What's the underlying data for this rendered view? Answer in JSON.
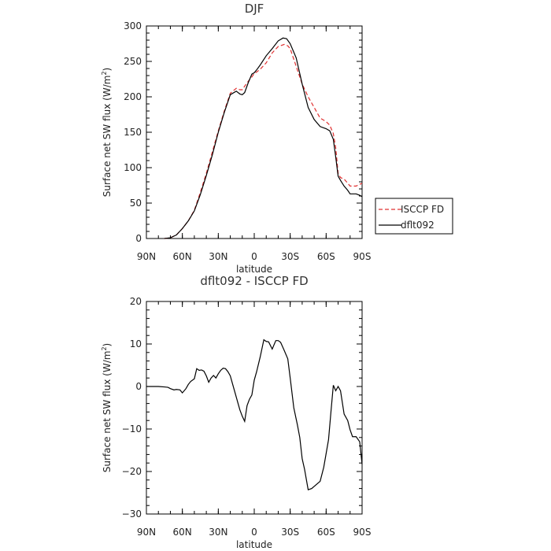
{
  "chart_data": [
    {
      "type": "line",
      "title": "DJF",
      "xlabel": "latitude",
      "ylabel": "Surface net SW flux (W/m²)",
      "ylabel_parts": [
        "Surface net SW flux (W/m",
        "2",
        ")"
      ],
      "xlim": [
        90,
        -90
      ],
      "ylim": [
        0,
        300
      ],
      "xticks": [
        90,
        60,
        30,
        0,
        -30,
        -60,
        -90
      ],
      "xtick_labels": [
        "90N",
        "60N",
        "30N",
        "0",
        "30S",
        "60S",
        "90S"
      ],
      "yticks": [
        0,
        50,
        100,
        150,
        200,
        250,
        300
      ],
      "ytick_labels": [
        "0",
        "50",
        "100",
        "150",
        "200",
        "250",
        "300"
      ],
      "grid": false,
      "legend_position": "right",
      "series": [
        {
          "name": "ISCCP FD",
          "color": "#e03030",
          "dash": "dashed",
          "x": [
            75,
            70,
            65,
            60,
            55,
            50,
            45,
            40,
            35,
            30,
            25,
            20,
            15,
            12,
            10,
            8,
            5,
            2,
            0,
            -2,
            -5,
            -10,
            -15,
            -20,
            -25,
            -28,
            -30,
            -35,
            -40,
            -45,
            -50,
            -55,
            -60,
            -63,
            -66,
            -68,
            -70,
            -72,
            -75,
            -80,
            -85,
            -90
          ],
          "y": [
            0,
            1,
            5,
            14,
            25,
            40,
            65,
            92,
            122,
            152,
            180,
            205,
            212,
            210,
            210,
            215,
            222,
            228,
            233,
            235,
            239,
            248,
            262,
            271,
            274,
            272,
            268,
            243,
            218,
            200,
            185,
            170,
            165,
            160,
            148,
            128,
            92,
            86,
            84,
            74,
            74,
            78
          ]
        },
        {
          "name": "dflt092",
          "color": "#000000",
          "dash": "solid",
          "x": [
            75,
            70,
            65,
            60,
            55,
            50,
            45,
            40,
            35,
            30,
            25,
            20,
            15,
            12,
            10,
            8,
            5,
            2,
            0,
            -2,
            -5,
            -10,
            -15,
            -20,
            -24,
            -27,
            -30,
            -35,
            -40,
            -45,
            -50,
            -55,
            -60,
            -63,
            -66,
            -68,
            -70,
            -72,
            -75,
            -78,
            -80,
            -85,
            -88,
            -90
          ],
          "y": [
            0,
            1,
            5,
            14,
            25,
            39,
            62,
            89,
            118,
            150,
            178,
            203,
            208,
            204,
            203,
            206,
            220,
            232,
            234,
            238,
            245,
            258,
            268,
            279,
            283,
            282,
            275,
            255,
            218,
            185,
            168,
            158,
            155,
            152,
            140,
            115,
            88,
            82,
            74,
            68,
            63,
            63,
            61,
            59
          ]
        }
      ]
    },
    {
      "type": "line",
      "title": "dflt092 - ISCCP FD",
      "xlabel": "latitude",
      "ylabel": "Surface net SW flux (W/m²)",
      "ylabel_parts": [
        "Surface net SW flux (W/m",
        "2",
        ")"
      ],
      "xlim": [
        90,
        -90
      ],
      "ylim": [
        -30,
        20
      ],
      "xticks": [
        90,
        60,
        30,
        0,
        -30,
        -60,
        -90
      ],
      "xtick_labels": [
        "90N",
        "60N",
        "30N",
        "0",
        "30S",
        "60S",
        "90S"
      ],
      "yticks": [
        -30,
        -20,
        -10,
        0,
        10,
        20
      ],
      "ytick_labels": [
        "−30",
        "−20",
        "−10",
        "0",
        "10",
        "20"
      ],
      "grid": false,
      "series": [
        {
          "color": "#000000",
          "dash": "solid",
          "x": [
            90,
            85,
            80,
            75,
            72,
            70,
            67,
            65,
            62,
            60,
            57,
            55,
            53,
            50,
            48,
            46,
            44,
            42,
            40,
            38,
            36,
            34,
            32,
            30,
            28,
            26,
            24,
            22,
            20,
            18,
            16,
            14,
            12,
            10,
            8,
            6,
            4,
            2,
            0,
            -2,
            -5,
            -8,
            -10,
            -12,
            -15,
            -18,
            -20,
            -22,
            -25,
            -28,
            -30,
            -33,
            -36,
            -38,
            -40,
            -42,
            -45,
            -48,
            -50,
            -55,
            -58,
            -62,
            -64,
            -66,
            -68,
            -70,
            -72,
            -75,
            -78,
            -80,
            -82,
            -85,
            -88,
            -90
          ],
          "y": [
            0,
            0,
            0,
            -0.1,
            -0.2,
            -0.5,
            -0.8,
            -0.7,
            -0.8,
            -1.5,
            -0.5,
            0.5,
            1.2,
            1.8,
            4.2,
            3.8,
            3.9,
            3.6,
            2.5,
            1.0,
            2.0,
            2.6,
            2.0,
            3.0,
            3.8,
            4.3,
            4.2,
            3.5,
            2.5,
            0.5,
            -1.5,
            -3.5,
            -5.5,
            -7.0,
            -8.2,
            -4.5,
            -3.0,
            -2.0,
            1.5,
            3.5,
            7.0,
            11.0,
            10.6,
            10.5,
            8.8,
            10.8,
            10.8,
            10.4,
            8.5,
            6.5,
            2.0,
            -5.0,
            -9.0,
            -12.0,
            -17.0,
            -19.5,
            -24.3,
            -24.0,
            -23.5,
            -22.3,
            -19.0,
            -12.5,
            -6.0,
            0.3,
            -1.0,
            0.0,
            -1.0,
            -6.5,
            -8.0,
            -10.2,
            -11.8,
            -11.8,
            -13.0,
            -18.3
          ]
        }
      ]
    }
  ]
}
